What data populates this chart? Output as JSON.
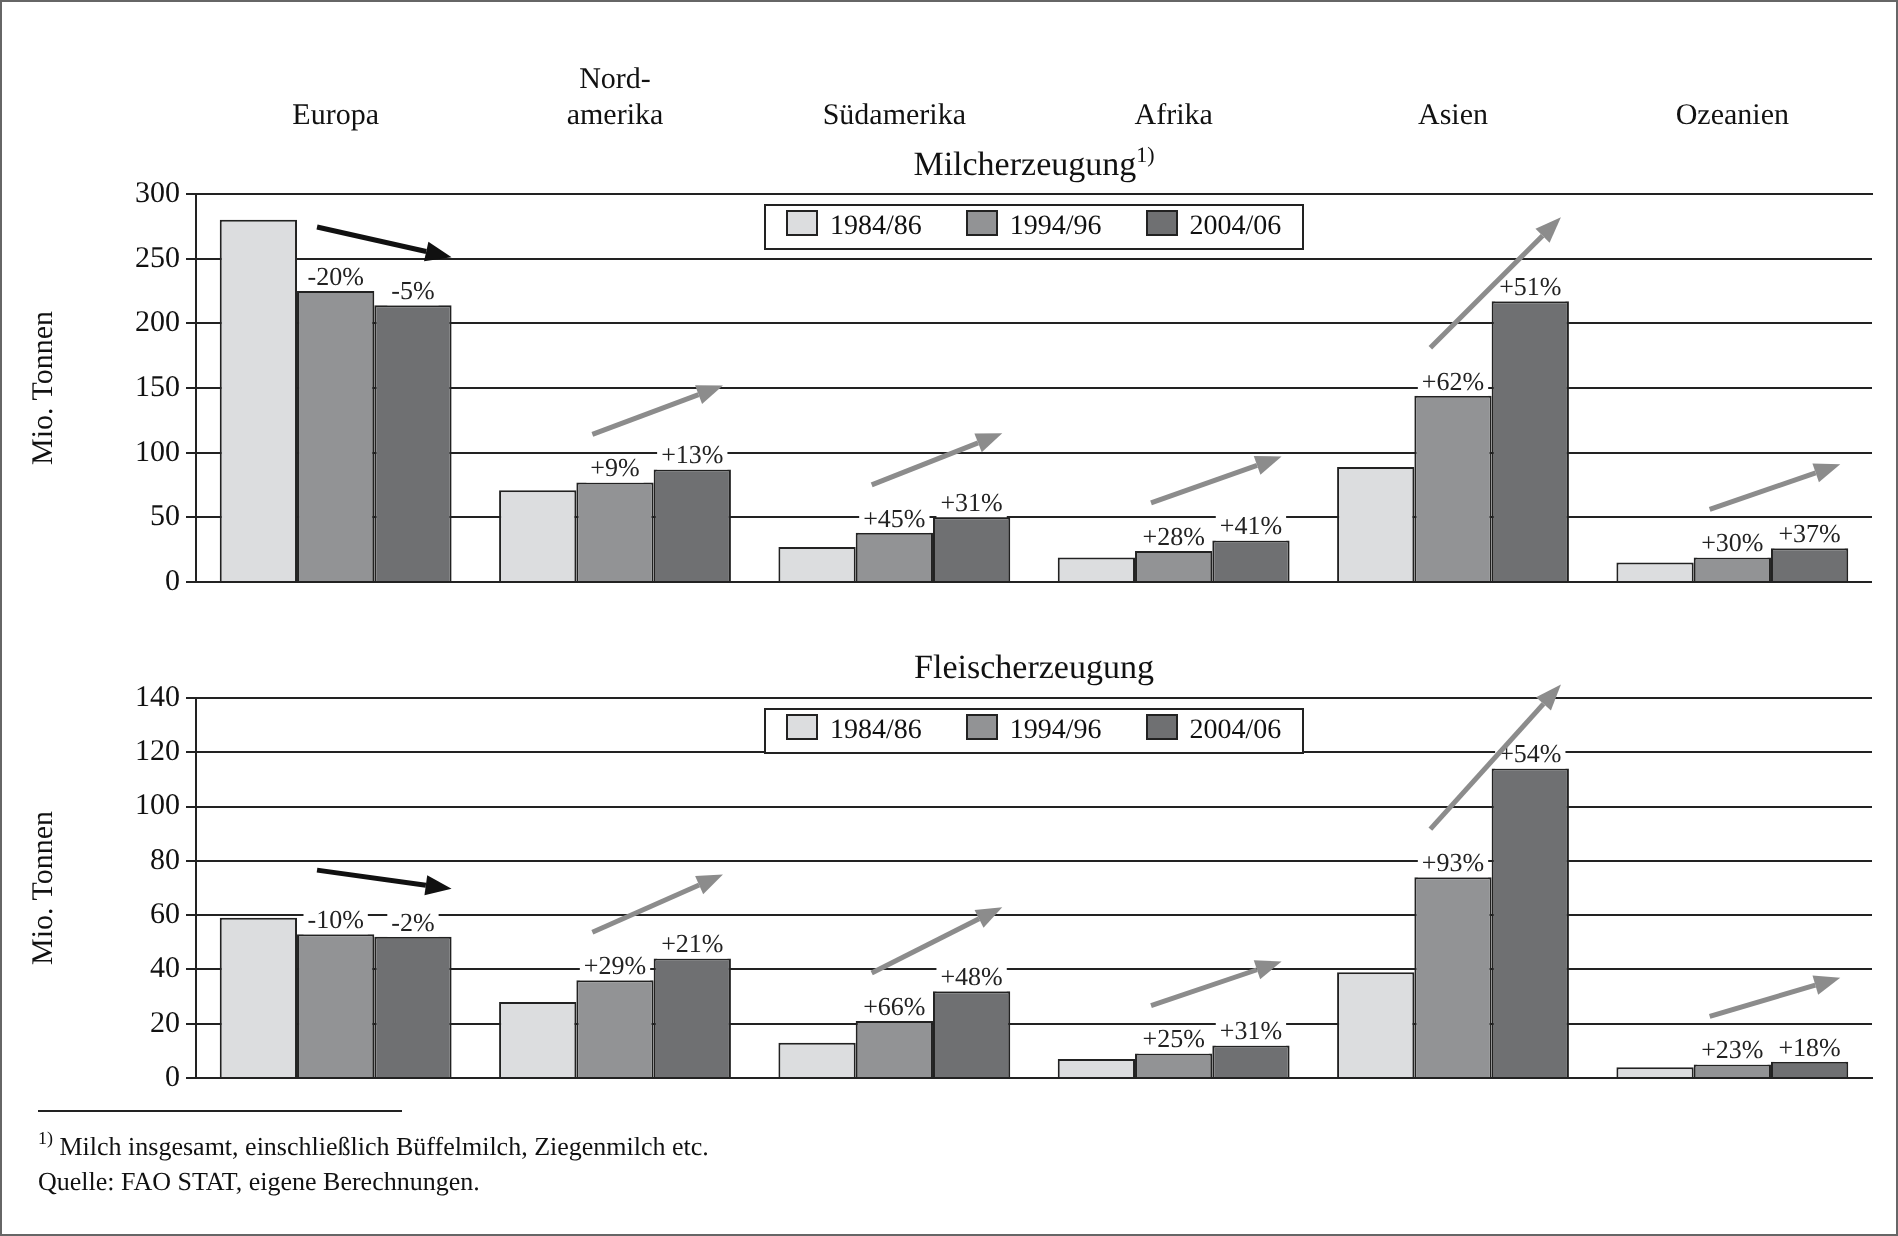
{
  "chart_data": [
    {
      "type": "bar",
      "title": "Milcherzeugung$^{1)}$",
      "ylabel": "Mio. Tonnen",
      "categories": [
        "Europa",
        "Nord-amerika",
        "Südamerika",
        "Afrika",
        "Asien",
        "Ozeanien"
      ],
      "series": [
        {
          "name": "1984/86",
          "color": "#dcdddf",
          "values": [
            280,
            71,
            27,
            19,
            89,
            15
          ]
        },
        {
          "name": "1994/96",
          "color": "#929395",
          "values": [
            225,
            77,
            38,
            24,
            144,
            19
          ]
        },
        {
          "name": "2004/06",
          "color": "#6f7072",
          "values": [
            214,
            87,
            50,
            32,
            217,
            26
          ]
        }
      ],
      "ylim": [
        0,
        300
      ],
      "yticks": [
        0,
        50,
        100,
        150,
        200,
        250,
        300
      ],
      "grid": "y",
      "legend": "top",
      "annotations": [
        {
          "text": "-20%",
          "x": "Europa",
          "y": 225
        },
        "-5%",
        {
          "text": "+9%",
          "x": "Nord-amerika",
          "y": 77
        },
        "+13%",
        {
          "text": "+45%",
          "x": "Südamerika",
          "y": 38
        },
        "+31%",
        {
          "text": "+28%",
          "x": "Afrika",
          "y": 24
        },
        "+41%",
        {
          "text": "+62%",
          "x": "Asien",
          "y": 144
        },
        "+51%",
        {
          "text": "+30%",
          "x": "Ozeanien",
          "y": 19
        },
        {
          "text": "+37%",
          "x": "Ozeanien",
          "y": 26
        }
      ]
    },
    {
      "type": "bar",
      "title": "Fleischerzeugung",
      "ylabel": "Mio. Tonnen",
      "categories": [
        "Europa",
        "Nord-amerika",
        "Südamerika",
        "Afrika",
        "Asien",
        "Ozeanien"
      ],
      "series": [
        {
          "name": "1984/86",
          "color": "#dcdddf",
          "values": [
            59,
            28,
            13,
            7,
            39,
            4
          ]
        },
        {
          "name": "1994/96",
          "color": "#929395",
          "values": [
            53,
            36,
            21,
            9,
            74,
            5
          ]
        },
        {
          "name": "2004/06",
          "color": "#6f7072",
          "values": [
            52,
            44,
            32,
            12,
            114,
            6
          ]
        }
      ],
      "ylim": [
        0,
        140
      ],
      "yticks": [
        0,
        20,
        40,
        60,
        80,
        100,
        120,
        140
      ],
      "grid": "y",
      "legend": "top",
      "tick_labels": "y",
      "annotations": [
        {
          "text": "-10%",
          "x": "Europa",
          "y": 53
        },
        {
          "text": "-2%",
          "x": "Europa",
          "y": 52
        },
        {
          "text": "+29%",
          "x": "Nord-amerika",
          "y": 36
        },
        "+21%",
        {
          "text": "+66%",
          "x": "Südamerika",
          "y": 21
        },
        "+48%",
        {
          "text": "+25%",
          "x": "Afrika",
          "y": 9
        },
        {
          "text": "+31%",
          "x": "Afrika",
          "y": 12
        },
        {
          "text": "+93%",
          "x": "Asien",
          "y": 74
        },
        "+54%",
        {
          "text": "+23%",
          "x": "Ozeanien",
          "y": 5
        },
        {
          "text": "+18%",
          "x": "Ozeanien",
          "y": 6
        },
        "$^{1)}$ Milch insgesamt, einschließlich Büffelmilch, Ziegenmilch etc.",
        "Quelle: FAO STAT, eigene Berechnungen."
      ]
    }
  ]
}
